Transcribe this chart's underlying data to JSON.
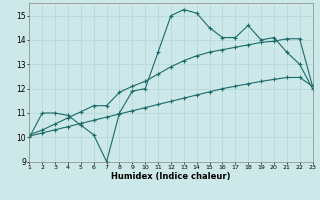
{
  "xlabel": "Humidex (Indice chaleur)",
  "background_color": "#cce8e8",
  "grid_color": "#b8d8d8",
  "line_color": "#1a6b6b",
  "xlim": [
    1,
    23
  ],
  "ylim": [
    9,
    15.5
  ],
  "yticks": [
    9,
    10,
    11,
    12,
    13,
    14,
    15
  ],
  "xticks": [
    1,
    2,
    3,
    4,
    5,
    6,
    7,
    8,
    9,
    10,
    11,
    12,
    13,
    14,
    15,
    16,
    17,
    18,
    19,
    20,
    21,
    22,
    23
  ],
  "series1_x": [
    1,
    2,
    3,
    4,
    5,
    6,
    7,
    8,
    9,
    10,
    11,
    12,
    13,
    14,
    15,
    16,
    17,
    18,
    19,
    20,
    21,
    22,
    23
  ],
  "series1_y": [
    10.0,
    11.0,
    11.0,
    10.9,
    10.5,
    10.1,
    9.0,
    11.0,
    11.9,
    12.0,
    13.5,
    15.0,
    15.25,
    15.1,
    14.5,
    14.1,
    14.1,
    14.6,
    14.0,
    14.1,
    13.5,
    13.0,
    12.0
  ],
  "series2_x": [
    1,
    2,
    3,
    4,
    5,
    6,
    7,
    8,
    9,
    10,
    11,
    12,
    13,
    14,
    15,
    16,
    17,
    18,
    19,
    20,
    21,
    22,
    23
  ],
  "series2_y": [
    10.1,
    10.3,
    10.55,
    10.8,
    11.05,
    11.3,
    11.3,
    11.85,
    12.1,
    12.3,
    12.6,
    12.9,
    13.15,
    13.35,
    13.5,
    13.6,
    13.7,
    13.8,
    13.9,
    13.95,
    14.05,
    14.05,
    12.1
  ],
  "series3_x": [
    1,
    2,
    3,
    4,
    5,
    6,
    7,
    8,
    9,
    10,
    11,
    12,
    13,
    14,
    15,
    16,
    17,
    18,
    19,
    20,
    21,
    22,
    23
  ],
  "series3_y": [
    10.05,
    10.18,
    10.31,
    10.44,
    10.57,
    10.7,
    10.83,
    10.96,
    11.09,
    11.22,
    11.35,
    11.48,
    11.61,
    11.74,
    11.87,
    12.0,
    12.1,
    12.2,
    12.3,
    12.38,
    12.46,
    12.46,
    12.1
  ]
}
